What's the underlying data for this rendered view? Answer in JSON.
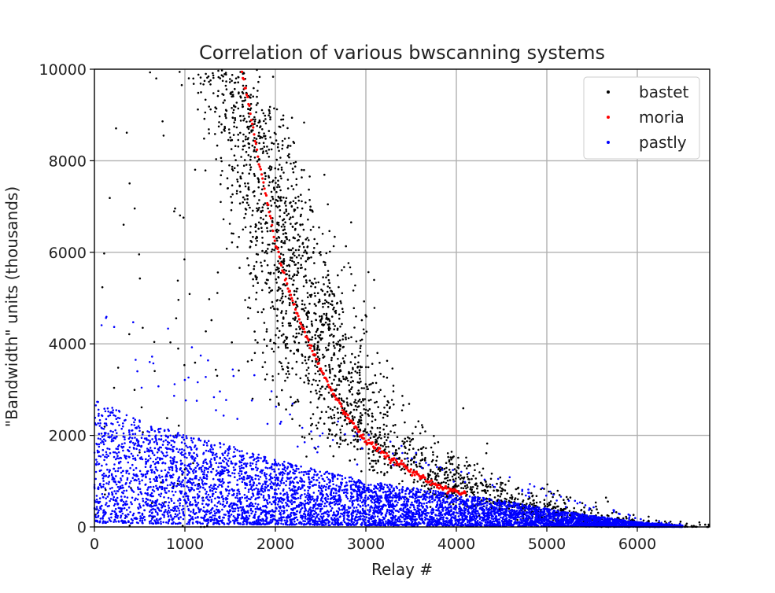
{
  "chart_data": {
    "type": "scatter",
    "title": "Correlation of various bwscanning systems",
    "xlabel": "Relay #",
    "ylabel": "\"Bandwidth\" units (thousands)",
    "xlim": [
      0,
      6800
    ],
    "ylim": [
      0,
      10000
    ],
    "xticks": [
      0,
      1000,
      2000,
      3000,
      4000,
      5000,
      6000
    ],
    "xtick_labels": [
      "0",
      "1000",
      "2000",
      "3000",
      "4000",
      "5000",
      "6000"
    ],
    "yticks": [
      0,
      2000,
      4000,
      6000,
      8000,
      10000
    ],
    "ytick_labels": [
      "0",
      "2000",
      "4000",
      "6000",
      "8000",
      "10000"
    ],
    "grid": true,
    "legend_position": "top-right",
    "series": [
      {
        "name": "bastet",
        "color": "#000000",
        "trend_x": [
          1350,
          1500,
          1700,
          1900,
          2100,
          2300,
          2500,
          2700,
          2900,
          3100,
          3400,
          3700,
          4000,
          4300,
          4600,
          4900,
          5200,
          5500,
          5800,
          6200
        ],
        "trend_y": [
          10000,
          9700,
          9000,
          7500,
          6000,
          4800,
          3800,
          3000,
          2300,
          1850,
          1500,
          1250,
          1000,
          780,
          560,
          400,
          270,
          160,
          90,
          40
        ],
        "x_spread": 380,
        "count": 2600
      },
      {
        "name": "moria",
        "color": "#ff0000",
        "x": [
          1620,
          1700,
          1800,
          1900,
          2000,
          2100,
          2200,
          2300,
          2400,
          2500,
          2600,
          2700,
          2800,
          2900,
          3000,
          3200,
          3400,
          3600,
          3800,
          4000,
          4100
        ],
        "y": [
          10000,
          9300,
          8200,
          7200,
          6200,
          5500,
          4900,
          4350,
          3900,
          3450,
          3050,
          2700,
          2400,
          2150,
          1900,
          1600,
          1350,
          1100,
          900,
          780,
          720
        ]
      },
      {
        "name": "pastly",
        "color": "#0000ff",
        "trend_x": [
          0,
          500,
          1000,
          1500,
          2000,
          2500,
          3000,
          3500,
          4000,
          4500,
          5000,
          5500,
          6000,
          6500
        ],
        "trend_y": [
          1800,
          1500,
          1300,
          1150,
          950,
          800,
          650,
          560,
          460,
          380,
          260,
          160,
          70,
          20
        ],
        "xmax": 6500,
        "count": 6500
      }
    ]
  }
}
